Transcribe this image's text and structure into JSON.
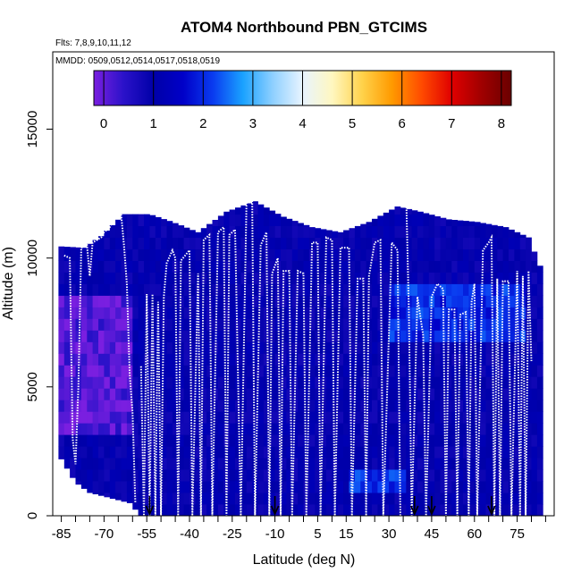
{
  "chart_data": {
    "type": "heatmap",
    "title": "ATOM4 Northbound PBN_GTCIMS",
    "flights_label": "Flts: 7,8,9,10,11,12",
    "dates_label": "MMDD: 0509,0512,0514,0517,0518,0519",
    "xlabel": "Latitude (deg N)",
    "ylabel": "Altitude (m)",
    "xlim": [
      -88,
      88
    ],
    "ylim": [
      0,
      18000
    ],
    "x_ticks": [
      -85,
      -70,
      -55,
      -40,
      -25,
      -10,
      5,
      15,
      30,
      45,
      60,
      75
    ],
    "x_minor_ticks": [
      -80,
      -75,
      -65,
      -60,
      -50,
      -45,
      -35,
      -30,
      -20,
      -15,
      -5,
      0,
      10,
      20,
      25,
      35,
      40,
      50,
      55,
      65,
      70,
      80,
      85
    ],
    "x_tick_labels": [
      "-85",
      "-70",
      "-55",
      "-40",
      "-25",
      "-10",
      "5",
      "15",
      "30",
      "45",
      "60",
      "75"
    ],
    "y_ticks": [
      0,
      5000,
      10000,
      15000
    ],
    "y_tick_labels": [
      "0",
      "5000",
      "10000",
      "15000"
    ],
    "colorbar": {
      "min": -0.2,
      "max": 8.2,
      "ticks": [
        0,
        1,
        2,
        3,
        4,
        5,
        6,
        7,
        8
      ],
      "tick_labels": [
        "0",
        "1",
        "2",
        "3",
        "4",
        "5",
        "6",
        "7",
        "8"
      ],
      "colors": [
        "#7a1fe0",
        "#2b12c9",
        "#0000a8",
        "#0000c8",
        "#0a3cf0",
        "#1aa2ff",
        "#8fd0ff",
        "#e8f4ff",
        "#fff7c0",
        "#ffd24a",
        "#ff9a00",
        "#ff4a00",
        "#e00000",
        "#a00000",
        "#6a0000"
      ]
    },
    "column_tops_m": [
      {
        "lat": -86,
        "top": 10450
      },
      {
        "lat": -78,
        "top": 10400
      },
      {
        "lat": -72,
        "top": 10850
      },
      {
        "lat": -64,
        "top": 11700
      },
      {
        "lat": -55,
        "top": 11700
      },
      {
        "lat": -47,
        "top": 11400
      },
      {
        "lat": -38,
        "top": 11000
      },
      {
        "lat": -28,
        "top": 11800
      },
      {
        "lat": -18,
        "top": 12200
      },
      {
        "lat": -8,
        "top": 11600
      },
      {
        "lat": 2,
        "top": 11200
      },
      {
        "lat": 12,
        "top": 11000
      },
      {
        "lat": 22,
        "top": 11400
      },
      {
        "lat": 32,
        "top": 12000
      },
      {
        "lat": 40,
        "top": 11800
      },
      {
        "lat": 50,
        "top": 11500
      },
      {
        "lat": 60,
        "top": 11400
      },
      {
        "lat": 70,
        "top": 11200
      },
      {
        "lat": 78,
        "top": 10800
      },
      {
        "lat": 82,
        "top": 9700
      }
    ],
    "column_bottoms_m": [
      {
        "lat": -86,
        "bottom": 2200
      },
      {
        "lat": -81,
        "bottom": 1300
      },
      {
        "lat": -76,
        "bottom": 900
      },
      {
        "lat": -62,
        "bottom": 500
      },
      {
        "lat": -58,
        "bottom": 0
      }
    ],
    "enhanced_regions": [
      {
        "lat_min": -86,
        "lat_max": -60,
        "alt_min": 3000,
        "alt_max": 8500,
        "value": 0.1
      },
      {
        "lat_min": 30,
        "lat_max": 78,
        "alt_min": 6500,
        "alt_max": 9000,
        "value": 2.0
      },
      {
        "lat_min": 15,
        "lat_max": 35,
        "alt_min": 500,
        "alt_max": 1500,
        "value": 2.1
      }
    ],
    "flight_tracks": [
      {
        "points": [
          [
            -84,
            10100
          ],
          [
            -82,
            10000
          ],
          [
            -81,
            3000
          ],
          [
            -80,
            2000
          ],
          [
            -79,
            5000
          ],
          [
            -78,
            10400
          ],
          [
            -76,
            10500
          ],
          [
            -75,
            9300
          ],
          [
            -74,
            10600
          ],
          [
            -71,
            10800
          ],
          [
            -70,
            11000
          ],
          [
            -68,
            11200
          ],
          [
            -66,
            11600
          ],
          [
            -64,
            11700
          ],
          [
            -63,
            10500
          ],
          [
            -62,
            9000
          ],
          [
            -61,
            5500
          ],
          [
            -60,
            4000
          ],
          [
            -59,
            500
          ]
        ]
      },
      {
        "points": [
          [
            -57,
            5800
          ],
          [
            -56,
            0
          ],
          [
            -55,
            8600
          ],
          [
            -54,
            0
          ],
          [
            -53,
            8600
          ],
          [
            -52,
            0
          ],
          [
            -51,
            8300
          ],
          [
            -50,
            0
          ],
          [
            -49,
            8500
          ],
          [
            -48,
            9800
          ],
          [
            -46,
            10300
          ],
          [
            -45,
            10000
          ],
          [
            -44,
            0
          ],
          [
            -43,
            9900
          ],
          [
            -40,
            10300
          ],
          [
            -39,
            0
          ],
          [
            -37,
            9400
          ],
          [
            -36,
            0
          ],
          [
            -35,
            10700
          ],
          [
            -33,
            10900
          ],
          [
            -32,
            0
          ],
          [
            -30,
            11000
          ],
          [
            -28,
            11200
          ],
          [
            -27,
            0
          ],
          [
            -26,
            10900
          ],
          [
            -24,
            11100
          ],
          [
            -22,
            0
          ],
          [
            -20,
            12200
          ],
          [
            -18,
            12300
          ],
          [
            -17,
            0
          ],
          [
            -15,
            10500
          ],
          [
            -13,
            11000
          ],
          [
            -12,
            0
          ],
          [
            -11,
            9400
          ],
          [
            -9,
            10000
          ],
          [
            -8,
            0
          ],
          [
            -7,
            9500
          ],
          [
            -5,
            9500
          ],
          [
            -4,
            0
          ],
          [
            -2,
            9500
          ],
          [
            0,
            9400
          ],
          [
            1,
            0
          ],
          [
            3,
            10600
          ],
          [
            5,
            10600
          ],
          [
            6,
            0
          ],
          [
            8,
            10800
          ],
          [
            10,
            10700
          ],
          [
            11,
            0
          ],
          [
            13,
            10400
          ],
          [
            16,
            10400
          ],
          [
            17,
            0
          ],
          [
            19,
            9200
          ],
          [
            21,
            9200
          ],
          [
            22,
            0
          ],
          [
            23,
            9300
          ],
          [
            25,
            10600
          ],
          [
            27,
            10700
          ],
          [
            28,
            0
          ],
          [
            31,
            10600
          ],
          [
            33,
            10300
          ],
          [
            34,
            0
          ]
        ]
      },
      {
        "points": [
          [
            35,
            12900
          ],
          [
            36,
            12600
          ],
          [
            37,
            8000
          ],
          [
            38,
            0
          ],
          [
            40,
            8500
          ],
          [
            42,
            7000
          ],
          [
            43,
            0
          ],
          [
            45,
            8500
          ],
          [
            47,
            9000
          ],
          [
            49,
            8800
          ],
          [
            50,
            0
          ],
          [
            51,
            8000
          ],
          [
            53,
            8000
          ],
          [
            54,
            0
          ],
          [
            55,
            7800
          ],
          [
            57,
            7900
          ],
          [
            58,
            0
          ],
          [
            59,
            8300
          ],
          [
            60,
            9000
          ],
          [
            61,
            0
          ],
          [
            63,
            10300
          ],
          [
            65,
            10600
          ],
          [
            66,
            10800
          ],
          [
            67,
            0
          ],
          [
            68,
            9200
          ],
          [
            69,
            0
          ],
          [
            70,
            9100
          ],
          [
            72,
            9100
          ],
          [
            73,
            0
          ],
          [
            75,
            9500
          ],
          [
            76,
            0
          ],
          [
            77,
            9300
          ],
          [
            78,
            0
          ],
          [
            79,
            9500
          ],
          [
            80,
            6000
          ]
        ]
      }
    ],
    "markers_lat": [
      -54,
      -10,
      39,
      45,
      66
    ]
  }
}
